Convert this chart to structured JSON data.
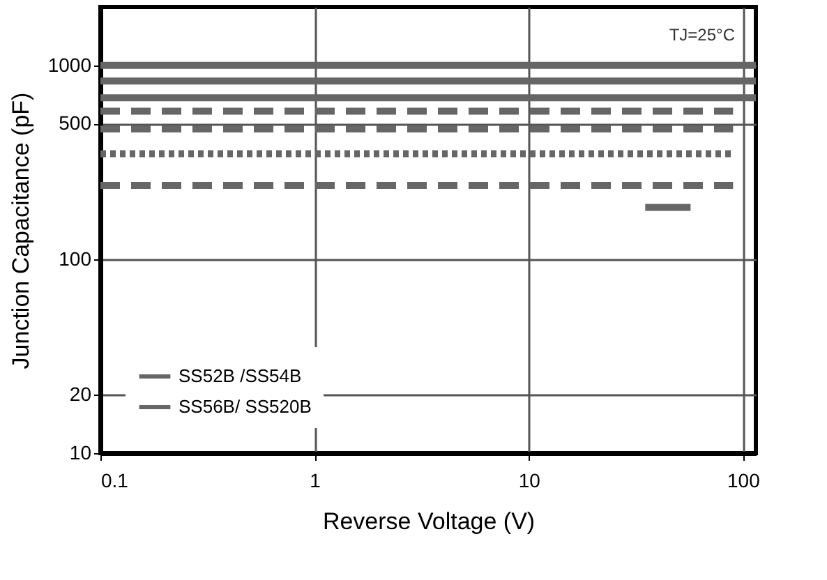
{
  "chart_data": {
    "type": "line",
    "xlabel": "Reverse Voltage (V)",
    "ylabel": "Junction Capacitance (pF)",
    "log": "xy",
    "xlim": [
      0.1,
      115
    ],
    "xticks": [
      0.1,
      1,
      10,
      100
    ],
    "ylim": [
      10,
      2000
    ],
    "yticks": [
      10,
      20,
      100,
      500,
      1000
    ],
    "grid": true,
    "legend": "bottom left",
    "marker": "none",
    "annotations": [
      "TJ=25°C"
    ],
    "series": [
      {
        "name": "SS52B /SS54B",
        "color": "#666666",
        "line_style": "solid",
        "x": [
          0.1,
          115
        ],
        "values": [
          1000,
          1000
        ]
      },
      {
        "name": "SS56B/ SS520B",
        "color": "#666666",
        "line_style": "solid",
        "x": [
          0.1,
          115
        ],
        "values": [
          830,
          830
        ]
      },
      {
        "color": "#666666",
        "line_style": "solid",
        "x": [
          0.1,
          115
        ],
        "values": [
          680,
          680
        ]
      },
      {
        "color": "#666666",
        "line_style": "dashed",
        "x": [
          0.1,
          90
        ],
        "values": [
          580,
          580
        ]
      },
      {
        "color": "#666666",
        "line_style": "dashed",
        "x": [
          0.1,
          90
        ],
        "values": [
          470,
          470
        ]
      },
      {
        "color": "#666666",
        "line_style": "dotted",
        "x": [
          0.1,
          90
        ],
        "values": [
          350,
          350
        ]
      },
      {
        "color": "#666666",
        "line_style": "dashed",
        "x": [
          0.1,
          90
        ],
        "values": [
          240,
          240
        ]
      },
      {
        "color": "#666666",
        "line_style": "solid",
        "x": [
          35,
          57
        ],
        "values": [
          185,
          185
        ]
      }
    ]
  }
}
